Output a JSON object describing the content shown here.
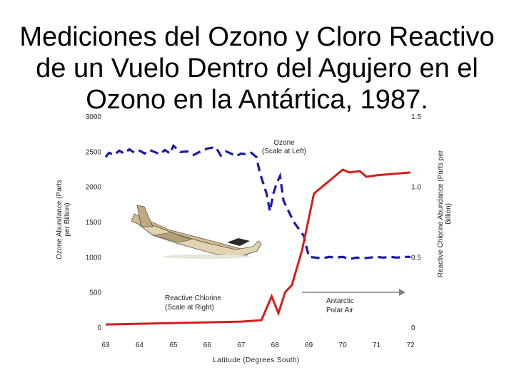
{
  "slide": {
    "title": "Mediciones del Ozono y Cloro Reactivo de un Vuelo Dentro del Agujero en el Ozono  en la Antártica, 1987."
  },
  "chart_data": {
    "type": "line",
    "title": "Mediciones del Ozono y Cloro Reactivo de un Vuelo Dentro del Agujero en el Ozono  en la Antártica, 1987.",
    "xlabel": "Latitude (Degrees South)",
    "xlim": [
      63,
      72
    ],
    "x_ticks": [
      "63",
      "64",
      "65",
      "66",
      "67",
      "68",
      "69",
      "70",
      "71",
      "72"
    ],
    "y_left": {
      "label": "Ozone Abundance (Parts per Billion)",
      "lim": [
        0,
        3000
      ],
      "ticks": [
        "0",
        "500",
        "1000",
        "1500",
        "2000",
        "2500",
        "3000"
      ]
    },
    "y_right": {
      "label": "Reactive Chlorine Abundance (Parts per Billion)",
      "lim": [
        0,
        1.5
      ],
      "ticks": [
        "0",
        "0.5",
        "1.0",
        "1.5"
      ]
    },
    "grid": false,
    "series": [
      {
        "name": "Ozone",
        "annotation_lines": [
          "Ozone",
          "(Scale at Left)"
        ],
        "axis": "left",
        "color": "#1a1aa8",
        "style": "dashed",
        "x": [
          63.0,
          63.1,
          63.25,
          63.4,
          63.55,
          63.7,
          63.85,
          64.0,
          64.15,
          64.3,
          64.45,
          64.6,
          64.75,
          64.9,
          65.0,
          65.2,
          65.4,
          65.6,
          65.8,
          66.0,
          66.1,
          66.25,
          66.4,
          66.55,
          66.7,
          66.85,
          67.0,
          67.15,
          67.3,
          67.45,
          67.55,
          67.65,
          67.75,
          67.85,
          67.95,
          68.05,
          68.15,
          68.25,
          68.4,
          68.55,
          68.7,
          68.85,
          69.0,
          69.2,
          69.4,
          69.6,
          69.8,
          70.0,
          70.2,
          70.4,
          70.6,
          70.8,
          71.0,
          71.2,
          71.4,
          71.6,
          71.8,
          72.0
        ],
        "y": [
          2420,
          2480,
          2450,
          2510,
          2470,
          2530,
          2480,
          2510,
          2470,
          2520,
          2490,
          2460,
          2520,
          2470,
          2580,
          2490,
          2500,
          2450,
          2500,
          2540,
          2550,
          2560,
          2440,
          2500,
          2470,
          2430,
          2470,
          2460,
          2480,
          2420,
          2200,
          2050,
          1900,
          1650,
          1900,
          2050,
          2150,
          1800,
          1650,
          1500,
          1400,
          1300,
          1000,
          990,
          980,
          1000,
          990,
          1000,
          970,
          990,
          980,
          990,
          1000,
          990,
          1000,
          990,
          1000,
          1000
        ]
      },
      {
        "name": "Reactive Chlorine",
        "annotation_lines": [
          "Reactive Chlorine",
          "(Scale at Right)"
        ],
        "axis": "right",
        "color": "#d21e1e",
        "style": "solid",
        "x": [
          63.0,
          64.0,
          65.0,
          66.0,
          67.0,
          67.6,
          67.9,
          68.1,
          68.3,
          68.5,
          68.8,
          69.15,
          69.5,
          69.8,
          70.0,
          70.2,
          70.5,
          70.7,
          71.0,
          71.5,
          72.0
        ],
        "y": [
          0.02,
          0.025,
          0.03,
          0.035,
          0.04,
          0.05,
          0.22,
          0.1,
          0.25,
          0.3,
          0.55,
          0.95,
          1.02,
          1.08,
          1.12,
          1.1,
          1.11,
          1.07,
          1.08,
          1.09,
          1.1
        ]
      }
    ],
    "annotations": [
      {
        "text": "Antarctic",
        "lines": [
          "Antarctic",
          "Polar Air"
        ],
        "arrow": {
          "from": 68.8,
          "to": 72.0,
          "direction": "right",
          "color": "#808080"
        }
      }
    ]
  }
}
